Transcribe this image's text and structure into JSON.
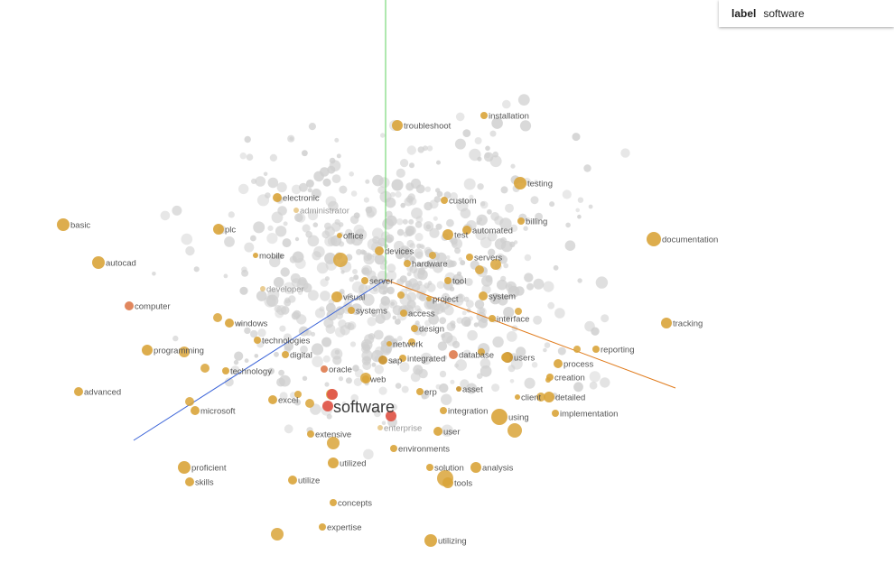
{
  "panel": {
    "key": "label",
    "value": "software"
  },
  "focus_word": "software",
  "colors": {
    "focus": "#e0584c",
    "neighbor": "#d9a43a",
    "neighbor_dark": "#c8902a",
    "other": "#cfcfcf",
    "axis_x": "#e07a1a",
    "axis_y": "#5fd15f",
    "axis_z": "#3a63d8"
  },
  "neighbors": [
    "troubleshoot",
    "installation",
    "testing",
    "electronic",
    "administrator",
    "custom",
    "billing",
    "basic",
    "plc",
    "office",
    "automated",
    "test",
    "documentation",
    "autocad",
    "mobile",
    "devices",
    "hardware",
    "servers",
    "developer",
    "server",
    "tool",
    "computer",
    "visual",
    "project",
    "system",
    "systems",
    "access",
    "interface",
    "tracking",
    "windows",
    "design",
    "technologies",
    "network",
    "reporting",
    "programming",
    "digital",
    "database",
    "users",
    "integrated",
    "process",
    "technology",
    "oracle",
    "sap",
    "web",
    "creation",
    "advanced",
    "asset",
    "erp",
    "client",
    "detailed",
    "excel",
    "microsoft",
    "integration",
    "implementation",
    "using",
    "enterprise",
    "extensive",
    "user",
    "environments",
    "utilized",
    "solution",
    "analysis",
    "proficient",
    "tools",
    "utilize",
    "skills",
    "concepts",
    "expertise",
    "utilizing"
  ]
}
